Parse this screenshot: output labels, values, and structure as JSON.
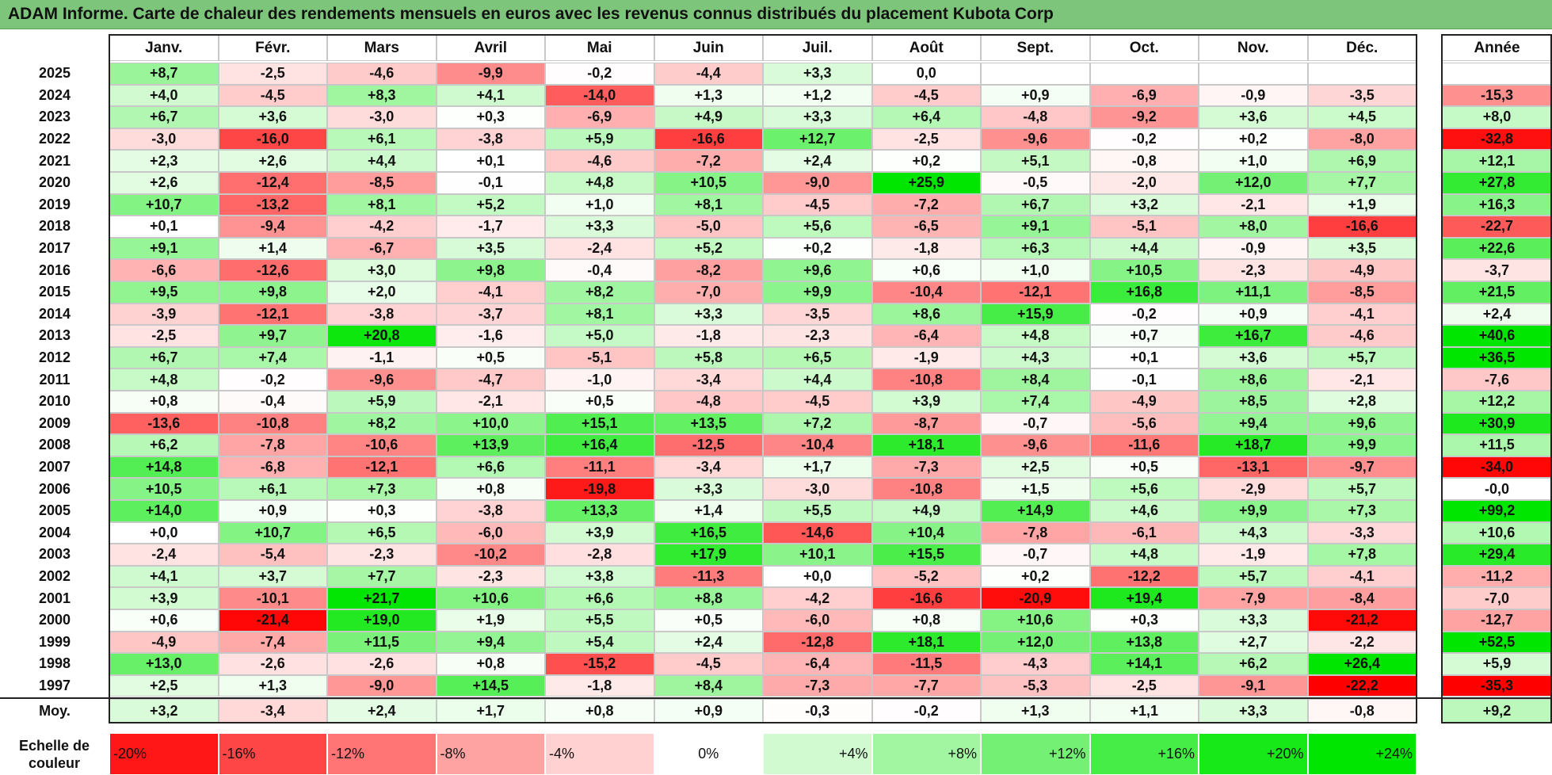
{
  "title": "ADAM Informe. Carte de chaleur des rendements mensuels en euros avec les revenus connus distribués du placement Kubota Corp",
  "colors": {
    "title_bg": "#7cc57a",
    "negative_max": "#ff0000",
    "positive_max": "#00e600",
    "neutral": "#ffffff"
  },
  "chart_data": {
    "type": "heatmap",
    "title": "ADAM Informe. Carte de chaleur des rendements mensuels en euros avec les revenus connus distribués du placement Kubota Corp",
    "months": [
      "Janv.",
      "Févr.",
      "Mars",
      "Avril",
      "Mai",
      "Juin",
      "Juil.",
      "Août",
      "Sept.",
      "Oct.",
      "Nov.",
      "Déc."
    ],
    "year_header": "Année",
    "rows": [
      {
        "year": "2025",
        "months": [
          "+8,7",
          "-2,5",
          "-4,6",
          "-9,9",
          "-0,2",
          "-4,4",
          "+3,3",
          "0,0",
          "",
          "",
          "",
          ""
        ],
        "total": ""
      },
      {
        "year": "2024",
        "months": [
          "+4,0",
          "-4,5",
          "+8,3",
          "+4,1",
          "-14,0",
          "+1,3",
          "+1,2",
          "-4,5",
          "+0,9",
          "-6,9",
          "-0,9",
          "-3,5"
        ],
        "total": "-15,3"
      },
      {
        "year": "2023",
        "months": [
          "+6,7",
          "+3,6",
          "-3,0",
          "+0,3",
          "-6,9",
          "+4,9",
          "+3,3",
          "+6,4",
          "-4,8",
          "-9,2",
          "+3,6",
          "+4,5"
        ],
        "total": "+8,0"
      },
      {
        "year": "2022",
        "months": [
          "-3,0",
          "-16,0",
          "+6,1",
          "-3,8",
          "+5,9",
          "-16,6",
          "+12,7",
          "-2,5",
          "-9,6",
          "-0,2",
          "+0,2",
          "-8,0"
        ],
        "total": "-32,8"
      },
      {
        "year": "2021",
        "months": [
          "+2,3",
          "+2,6",
          "+4,4",
          "+0,1",
          "-4,6",
          "-7,2",
          "+2,4",
          "+0,2",
          "+5,1",
          "-0,8",
          "+1,0",
          "+6,9"
        ],
        "total": "+12,1"
      },
      {
        "year": "2020",
        "months": [
          "+2,6",
          "-12,4",
          "-8,5",
          "-0,1",
          "+4,8",
          "+10,5",
          "-9,0",
          "+25,9",
          "-0,5",
          "-2,0",
          "+12,0",
          "+7,7"
        ],
        "total": "+27,8"
      },
      {
        "year": "2019",
        "months": [
          "+10,7",
          "-13,2",
          "+8,1",
          "+5,2",
          "+1,0",
          "+8,1",
          "-4,5",
          "-7,2",
          "+6,7",
          "+3,2",
          "-2,1",
          "+1,9"
        ],
        "total": "+16,3"
      },
      {
        "year": "2018",
        "months": [
          "+0,1",
          "-9,4",
          "-4,2",
          "-1,7",
          "+3,3",
          "-5,0",
          "+5,6",
          "-6,5",
          "+9,1",
          "-5,1",
          "+8,0",
          "-16,6"
        ],
        "total": "-22,7"
      },
      {
        "year": "2017",
        "months": [
          "+9,1",
          "+1,4",
          "-6,7",
          "+3,5",
          "-2,4",
          "+5,2",
          "+0,2",
          "-1,8",
          "+6,3",
          "+4,4",
          "-0,9",
          "+3,5"
        ],
        "total": "+22,6"
      },
      {
        "year": "2016",
        "months": [
          "-6,6",
          "-12,6",
          "+3,0",
          "+9,8",
          "-0,4",
          "-8,2",
          "+9,6",
          "+0,6",
          "+1,0",
          "+10,5",
          "-2,3",
          "-4,9"
        ],
        "total": "-3,7"
      },
      {
        "year": "2015",
        "months": [
          "+9,5",
          "+9,8",
          "+2,0",
          "-4,1",
          "+8,2",
          "-7,0",
          "+9,9",
          "-10,4",
          "-12,1",
          "+16,8",
          "+11,1",
          "-8,5"
        ],
        "total": "+21,5"
      },
      {
        "year": "2014",
        "months": [
          "-3,9",
          "-12,1",
          "-3,8",
          "-3,7",
          "+8,1",
          "+3,3",
          "-3,5",
          "+8,6",
          "+15,9",
          "-0,2",
          "+0,9",
          "-4,1"
        ],
        "total": "+2,4"
      },
      {
        "year": "2013",
        "months": [
          "-2,5",
          "+9,7",
          "+20,8",
          "-1,6",
          "+5,0",
          "-1,8",
          "-2,3",
          "-6,4",
          "+4,8",
          "+0,7",
          "+16,7",
          "-4,6"
        ],
        "total": "+40,6"
      },
      {
        "year": "2012",
        "months": [
          "+6,7",
          "+7,4",
          "-1,1",
          "+0,5",
          "-5,1",
          "+5,8",
          "+6,5",
          "-1,9",
          "+4,3",
          "+0,1",
          "+3,6",
          "+5,7"
        ],
        "total": "+36,5"
      },
      {
        "year": "2011",
        "months": [
          "+4,8",
          "-0,2",
          "-9,6",
          "-4,7",
          "-1,0",
          "-3,4",
          "+4,4",
          "-10,8",
          "+8,4",
          "-0,1",
          "+8,6",
          "-2,1"
        ],
        "total": "-7,6"
      },
      {
        "year": "2010",
        "months": [
          "+0,8",
          "-0,4",
          "+5,9",
          "-2,1",
          "+0,5",
          "-4,8",
          "-4,5",
          "+3,9",
          "+7,4",
          "-4,9",
          "+8,5",
          "+2,8"
        ],
        "total": "+12,2"
      },
      {
        "year": "2009",
        "months": [
          "-13,6",
          "-10,8",
          "+8,2",
          "+10,0",
          "+15,1",
          "+13,5",
          "+7,2",
          "-8,7",
          "-0,7",
          "-5,6",
          "+9,4",
          "+9,6"
        ],
        "total": "+30,9"
      },
      {
        "year": "2008",
        "months": [
          "+6,2",
          "-7,8",
          "-10,6",
          "+13,9",
          "+16,4",
          "-12,5",
          "-10,4",
          "+18,1",
          "-9,6",
          "-11,6",
          "+18,7",
          "+9,9"
        ],
        "total": "+11,5"
      },
      {
        "year": "2007",
        "months": [
          "+14,8",
          "-6,8",
          "-12,1",
          "+6,6",
          "-11,1",
          "-3,4",
          "+1,7",
          "-7,3",
          "+2,5",
          "+0,5",
          "-13,1",
          "-9,7"
        ],
        "total": "-34,0"
      },
      {
        "year": "2006",
        "months": [
          "+10,5",
          "+6,1",
          "+7,3",
          "+0,8",
          "-19,8",
          "+3,3",
          "-3,0",
          "-10,8",
          "+1,5",
          "+5,6",
          "-2,9",
          "+5,7"
        ],
        "total": "-0,0"
      },
      {
        "year": "2005",
        "months": [
          "+14,0",
          "+0,9",
          "+0,3",
          "-3,8",
          "+13,3",
          "+1,4",
          "+5,5",
          "+4,9",
          "+14,9",
          "+4,6",
          "+9,9",
          "+7,3"
        ],
        "total": "+99,2"
      },
      {
        "year": "2004",
        "months": [
          "+0,0",
          "+10,7",
          "+6,5",
          "-6,0",
          "+3,9",
          "+16,5",
          "-14,6",
          "+10,4",
          "-7,8",
          "-6,1",
          "+4,3",
          "-3,3"
        ],
        "total": "+10,6"
      },
      {
        "year": "2003",
        "months": [
          "-2,4",
          "-5,4",
          "-2,3",
          "-10,2",
          "-2,8",
          "+17,9",
          "+10,1",
          "+15,5",
          "-0,7",
          "+4,8",
          "-1,9",
          "+7,8"
        ],
        "total": "+29,4"
      },
      {
        "year": "2002",
        "months": [
          "+4,1",
          "+3,7",
          "+7,7",
          "-2,3",
          "+3,8",
          "-11,3",
          "+0,0",
          "-5,2",
          "+0,2",
          "-12,2",
          "+5,7",
          "-4,1"
        ],
        "total": "-11,2"
      },
      {
        "year": "2001",
        "months": [
          "+3,9",
          "-10,1",
          "+21,7",
          "+10,6",
          "+6,6",
          "+8,8",
          "-4,2",
          "-16,6",
          "-20,9",
          "+19,4",
          "-7,9",
          "-8,4"
        ],
        "total": "-7,0"
      },
      {
        "year": "2000",
        "months": [
          "+0,6",
          "-21,4",
          "+19,0",
          "+1,9",
          "+5,5",
          "+0,5",
          "-6,0",
          "+0,8",
          "+10,6",
          "+0,3",
          "+3,3",
          "-21,2"
        ],
        "total": "-12,7"
      },
      {
        "year": "1999",
        "months": [
          "-4,9",
          "-7,4",
          "+11,5",
          "+9,4",
          "+5,4",
          "+2,4",
          "-12,8",
          "+18,1",
          "+12,0",
          "+13,8",
          "+2,7",
          "-2,2"
        ],
        "total": "+52,5"
      },
      {
        "year": "1998",
        "months": [
          "+13,0",
          "-2,6",
          "-2,6",
          "+0,8",
          "-15,2",
          "-4,5",
          "-6,4",
          "-11,5",
          "-4,3",
          "+14,1",
          "+6,2",
          "+26,4"
        ],
        "total": "+5,9"
      },
      {
        "year": "1997",
        "months": [
          "+2,5",
          "+1,3",
          "-9,0",
          "+14,5",
          "-1,8",
          "+8,4",
          "-7,3",
          "-7,7",
          "-5,3",
          "-2,5",
          "-9,1",
          "-22,2"
        ],
        "total": "-35,3"
      }
    ],
    "average": {
      "label": "Moy.",
      "months": [
        "+3,2",
        "-3,4",
        "+2,4",
        "+1,7",
        "+0,8",
        "+0,9",
        "-0,3",
        "-0,2",
        "+1,3",
        "+1,1",
        "+3,3",
        "-0,8"
      ],
      "total": "+9,2"
    },
    "legend": {
      "label_line1": "Echelle de",
      "label_line2": "couleur",
      "items": [
        "-20%",
        "-16%",
        "-12%",
        "-8%",
        "-4%",
        "0%",
        "+4%",
        "+8%",
        "+12%",
        "+16%",
        "+20%",
        "+24%"
      ]
    }
  }
}
